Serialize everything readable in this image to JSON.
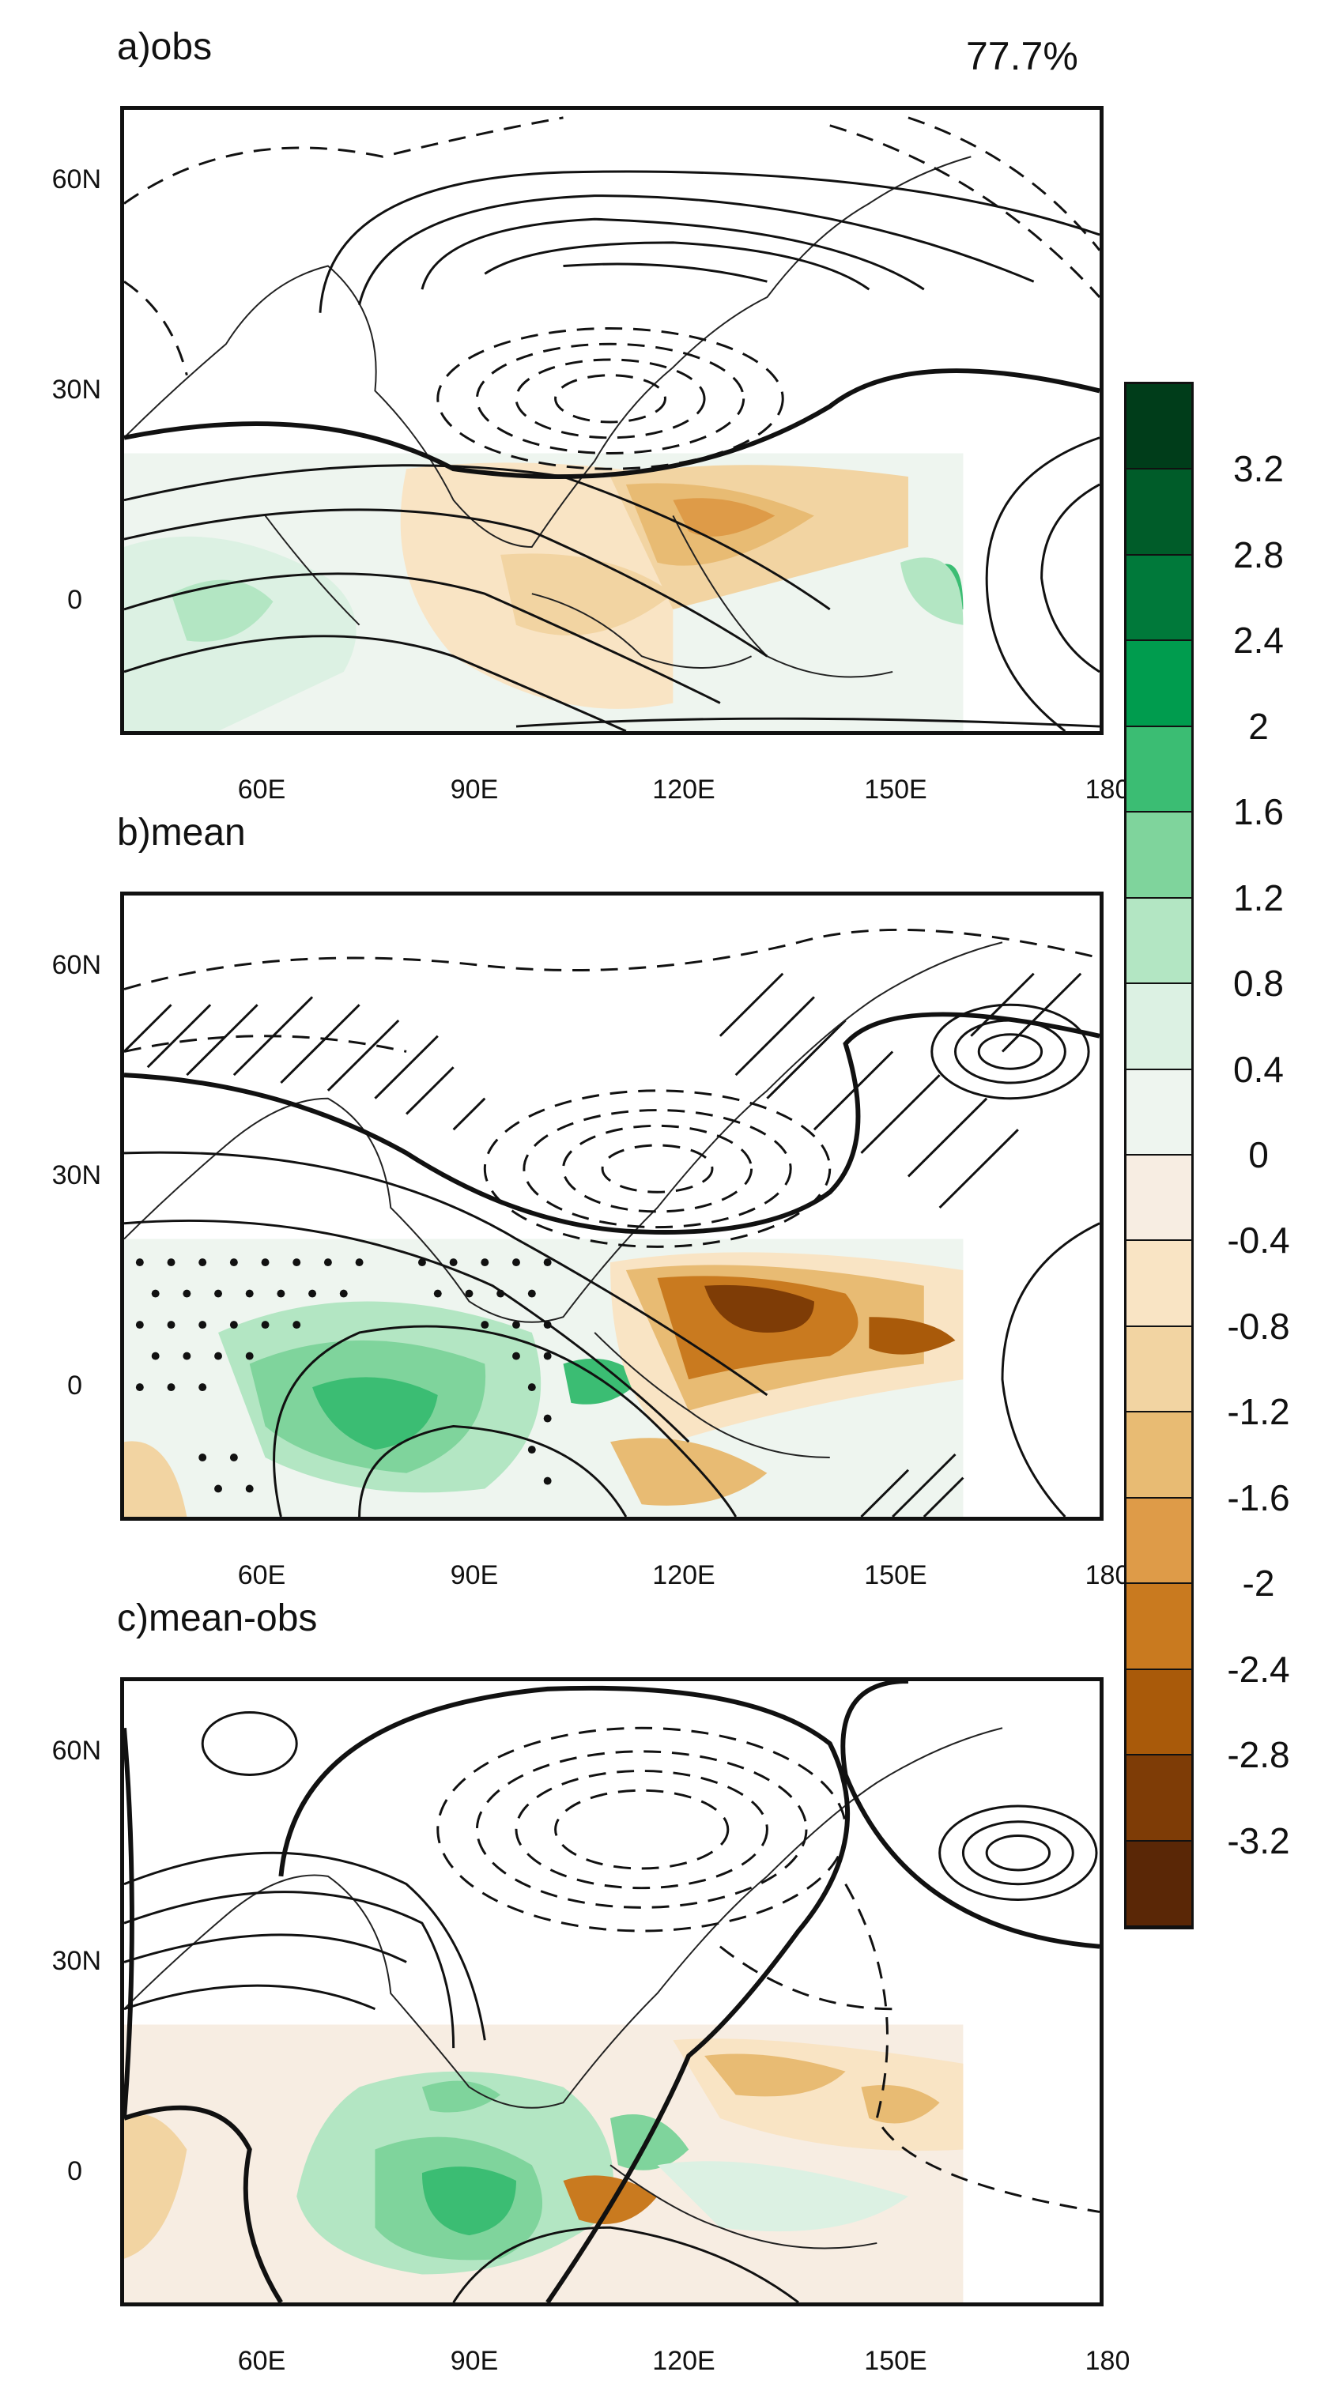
{
  "panels": [
    {
      "title": "a)obs",
      "extra": "77.7%"
    },
    {
      "title": "b)mean",
      "extra": ""
    },
    {
      "title": "c)mean-obs",
      "extra": ""
    }
  ],
  "lat_labels": [
    "60N",
    "30N",
    "0"
  ],
  "lon_labels": [
    "60E",
    "90E",
    "120E",
    "150E",
    "180"
  ],
  "colorbar": {
    "labels": [
      "3.2",
      "2.8",
      "2.4",
      "2",
      "1.6",
      "1.2",
      "0.8",
      "0.4",
      "0",
      "-0.4",
      "-0.8",
      "-1.2",
      "-1.6",
      "-2",
      "-2.4",
      "-2.8",
      "-3.2"
    ],
    "colors": [
      "#003d1a",
      "#005c29",
      "#00793a",
      "#009c4e",
      "#3bbd73",
      "#7fd49c",
      "#b3e6c3",
      "#dcf1e3",
      "#eef5ef",
      "#f7ede2",
      "#f9e4c4",
      "#f2d4a2",
      "#e8bb73",
      "#de9b48",
      "#c97a1f",
      "#a95a0a",
      "#7e3c06",
      "#5a2706"
    ]
  }
}
